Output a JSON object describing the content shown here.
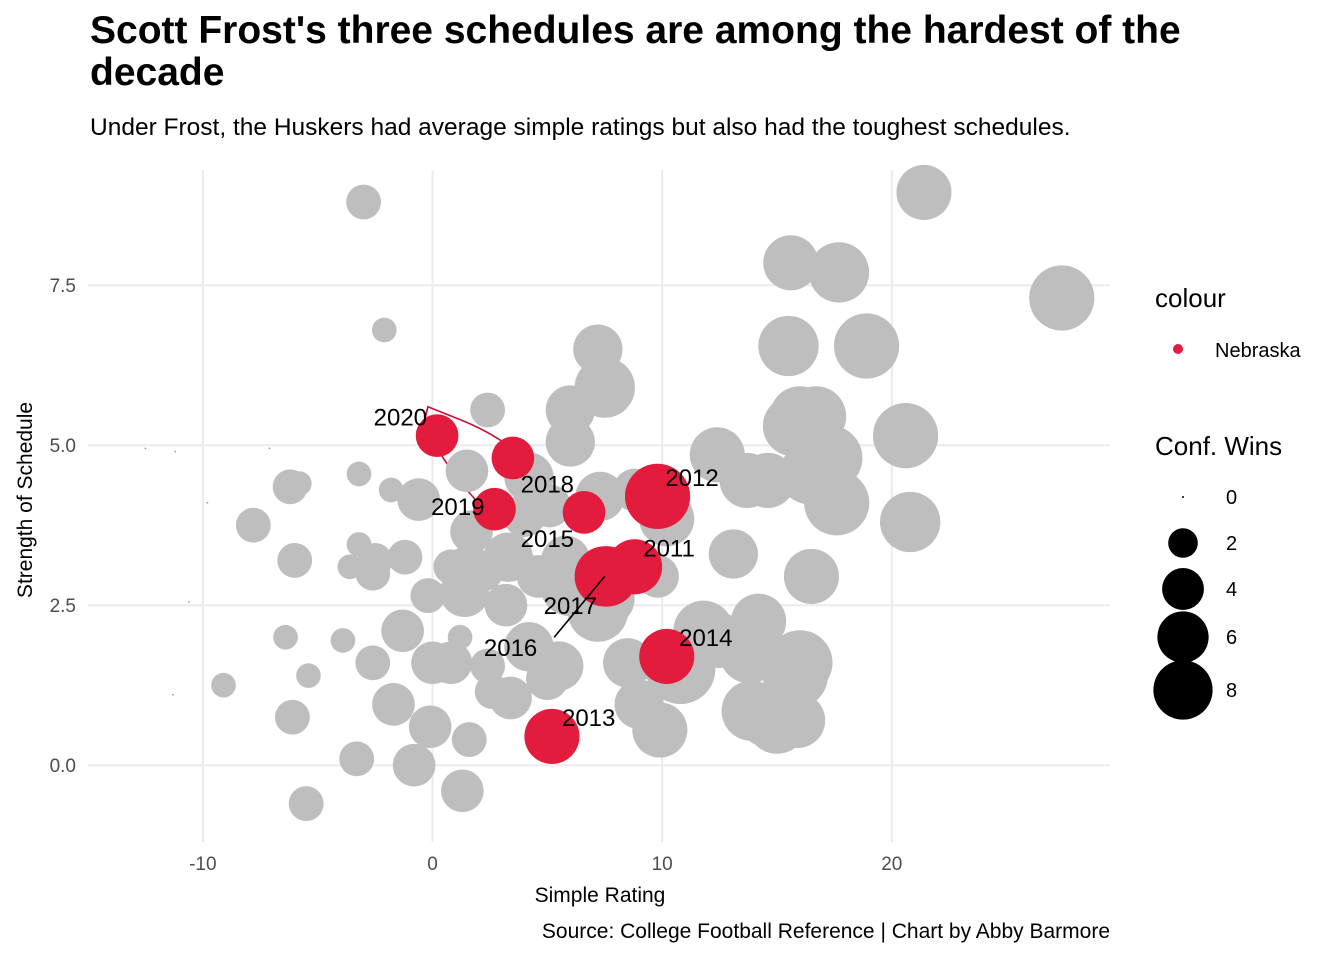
{
  "title": "Scott Frost's three schedules are among the hardest of the decade",
  "subtitle": "Under Frost, the Huskers had average simple ratings but also had the toughest schedules.",
  "caption": "Source: College Football Reference | Chart by Abby Barmore",
  "colors": {
    "highlight": "#e31c3d",
    "other": "#bebebe",
    "grid": "#ebebeb",
    "encircle": "#c8102e"
  },
  "chart_data": {
    "type": "scatter",
    "xlabel": "Simple Rating",
    "ylabel": "Strength of Schedule",
    "xlim": [
      -15,
      29.5
    ],
    "ylim": [
      -1.2,
      9.3
    ],
    "x_ticks": [
      -10,
      0,
      10,
      20
    ],
    "x_tick_labels": [
      "-10",
      "0",
      "10",
      "20"
    ],
    "y_ticks": [
      0,
      2.5,
      5,
      7.5
    ],
    "y_tick_labels": [
      "0.0",
      "2.5",
      "5.0",
      "7.5"
    ],
    "grid": true,
    "legend": {
      "placement": "right",
      "colour_title": "colour",
      "colour_entries": [
        "Nebraska"
      ],
      "size_title": "Conf. Wins",
      "size_entries": [
        0,
        2,
        4,
        6,
        8
      ]
    },
    "series": [
      {
        "name": "Nebraska",
        "points": [
          {
            "label": "2020",
            "x": 0.2,
            "y": 5.15,
            "wins": 3
          },
          {
            "label": "2019",
            "x": 2.7,
            "y": 4.0,
            "wins": 3
          },
          {
            "label": "2018",
            "x": 3.5,
            "y": 4.8,
            "wins": 3
          },
          {
            "label": "2015",
            "x": 6.6,
            "y": 3.95,
            "wins": 3
          },
          {
            "label": "2012",
            "x": 9.8,
            "y": 4.2,
            "wins": 7
          },
          {
            "label": "2011",
            "x": 8.8,
            "y": 3.1,
            "wins": 5
          },
          {
            "label": "2017",
            "x": 7.6,
            "y": 2.95,
            "wins": 6
          },
          {
            "label": "2016",
            "x": 7.5,
            "y": 2.95,
            "wins": 6
          },
          {
            "label": "2014",
            "x": 10.2,
            "y": 1.7,
            "wins": 5
          },
          {
            "label": "2013",
            "x": 5.2,
            "y": 0.45,
            "wins": 5
          }
        ]
      },
      {
        "points": [
          {
            "x": 21.4,
            "y": 8.95,
            "wins": 5
          },
          {
            "x": -3.0,
            "y": 8.8,
            "wins": 2
          },
          {
            "x": 15.6,
            "y": 7.85,
            "wins": 5
          },
          {
            "x": 17.7,
            "y": 7.7,
            "wins": 6
          },
          {
            "x": 27.4,
            "y": 7.3,
            "wins": 7
          },
          {
            "x": -2.1,
            "y": 6.8,
            "wins": 1
          },
          {
            "x": 7.2,
            "y": 6.5,
            "wins": 4
          },
          {
            "x": 15.5,
            "y": 6.55,
            "wins": 6
          },
          {
            "x": 18.9,
            "y": 6.55,
            "wins": 7
          },
          {
            "x": 7.5,
            "y": 5.9,
            "wins": 6
          },
          {
            "x": 6.0,
            "y": 5.55,
            "wins": 4
          },
          {
            "x": 2.4,
            "y": 5.55,
            "wins": 2
          },
          {
            "x": 15.7,
            "y": 5.3,
            "wins": 6
          },
          {
            "x": 16.0,
            "y": 5.45,
            "wins": 6
          },
          {
            "x": 16.7,
            "y": 5.45,
            "wins": 6
          },
          {
            "x": 20.6,
            "y": 5.15,
            "wins": 7
          },
          {
            "x": 6.0,
            "y": 5.05,
            "wins": 4
          },
          {
            "x": 12.4,
            "y": 4.85,
            "wins": 5
          },
          {
            "x": 17.3,
            "y": 4.8,
            "wins": 7
          },
          {
            "x": 16.4,
            "y": 4.55,
            "wins": 6
          },
          {
            "x": 13.7,
            "y": 4.45,
            "wins": 5
          },
          {
            "x": 14.6,
            "y": 4.45,
            "wins": 5
          },
          {
            "x": 4.2,
            "y": 4.5,
            "wins": 4
          },
          {
            "x": 1.5,
            "y": 4.6,
            "wins": 3
          },
          {
            "x": -3.2,
            "y": 4.55,
            "wins": 1
          },
          {
            "x": -6.2,
            "y": 4.35,
            "wins": 2
          },
          {
            "x": -5.8,
            "y": 4.4,
            "wins": 1
          },
          {
            "x": -1.8,
            "y": 4.3,
            "wins": 1
          },
          {
            "x": -0.6,
            "y": 4.15,
            "wins": 3
          },
          {
            "x": 7.3,
            "y": 4.2,
            "wins": 4
          },
          {
            "x": 8.8,
            "y": 4.3,
            "wins": 3
          },
          {
            "x": 17.6,
            "y": 4.1,
            "wins": 7
          },
          {
            "x": 5.1,
            "y": 4.05,
            "wins": 3
          },
          {
            "x": 4.0,
            "y": 3.9,
            "wins": 3
          },
          {
            "x": 10.2,
            "y": 3.85,
            "wins": 5
          },
          {
            "x": 20.8,
            "y": 3.8,
            "wins": 6
          },
          {
            "x": -7.8,
            "y": 3.75,
            "wins": 2
          },
          {
            "x": 1.7,
            "y": 3.65,
            "wins": 3
          },
          {
            "x": -3.2,
            "y": 3.45,
            "wins": 1
          },
          {
            "x": 13.1,
            "y": 3.3,
            "wins": 4
          },
          {
            "x": 5.8,
            "y": 3.2,
            "wins": 4
          },
          {
            "x": 3.3,
            "y": 3.25,
            "wins": 4
          },
          {
            "x": -6.0,
            "y": 3.2,
            "wins": 2
          },
          {
            "x": -2.5,
            "y": 3.2,
            "wins": 2
          },
          {
            "x": -1.2,
            "y": 3.25,
            "wins": 2
          },
          {
            "x": -3.6,
            "y": 3.1,
            "wins": 1
          },
          {
            "x": 1.6,
            "y": 3.05,
            "wins": 4
          },
          {
            "x": 0.8,
            "y": 3.1,
            "wins": 2
          },
          {
            "x": 2.3,
            "y": 3.0,
            "wins": 2
          },
          {
            "x": 6.0,
            "y": 2.8,
            "wins": 6
          },
          {
            "x": 4.6,
            "y": 2.95,
            "wins": 3
          },
          {
            "x": 9.8,
            "y": 2.95,
            "wins": 3
          },
          {
            "x": 16.5,
            "y": 2.95,
            "wins": 5
          },
          {
            "x": -2.6,
            "y": 3.0,
            "wins": 2
          },
          {
            "x": 1.4,
            "y": 2.7,
            "wins": 4
          },
          {
            "x": -0.2,
            "y": 2.65,
            "wins": 2
          },
          {
            "x": 3.2,
            "y": 2.5,
            "wins": 3
          },
          {
            "x": 7.2,
            "y": 2.4,
            "wins": 6
          },
          {
            "x": 7.6,
            "y": 2.6,
            "wins": 5
          },
          {
            "x": 14.2,
            "y": 2.25,
            "wins": 5
          },
          {
            "x": 11.8,
            "y": 2.1,
            "wins": 6
          },
          {
            "x": 12.5,
            "y": 1.95,
            "wins": 5
          },
          {
            "x": -1.3,
            "y": 2.1,
            "wins": 3
          },
          {
            "x": -6.4,
            "y": 2.0,
            "wins": 1
          },
          {
            "x": -3.9,
            "y": 1.95,
            "wins": 1
          },
          {
            "x": 1.2,
            "y": 2.0,
            "wins": 1
          },
          {
            "x": 4.2,
            "y": 1.85,
            "wins": 4
          },
          {
            "x": 13.8,
            "y": 1.75,
            "wins": 6
          },
          {
            "x": 10.8,
            "y": 1.5,
            "wins": 8
          },
          {
            "x": 16.0,
            "y": 1.6,
            "wins": 7
          },
          {
            "x": 15.8,
            "y": 1.4,
            "wins": 7
          },
          {
            "x": 8.5,
            "y": 1.6,
            "wins": 4
          },
          {
            "x": 5.5,
            "y": 1.55,
            "wins": 4
          },
          {
            "x": 5.0,
            "y": 1.35,
            "wins": 3
          },
          {
            "x": 0.0,
            "y": 1.6,
            "wins": 3
          },
          {
            "x": 0.8,
            "y": 1.6,
            "wins": 3
          },
          {
            "x": -2.6,
            "y": 1.6,
            "wins": 2
          },
          {
            "x": 2.4,
            "y": 1.55,
            "wins": 2
          },
          {
            "x": -5.4,
            "y": 1.4,
            "wins": 1
          },
          {
            "x": -9.1,
            "y": 1.25,
            "wins": 1
          },
          {
            "x": 2.6,
            "y": 1.15,
            "wins": 2
          },
          {
            "x": 3.4,
            "y": 1.05,
            "wins": 3
          },
          {
            "x": -1.7,
            "y": 0.95,
            "wins": 3
          },
          {
            "x": 9.0,
            "y": 0.95,
            "wins": 4
          },
          {
            "x": 13.9,
            "y": 0.85,
            "wins": 6
          },
          {
            "x": 14.6,
            "y": 0.75,
            "wins": 6
          },
          {
            "x": 15.0,
            "y": 0.65,
            "wins": 6
          },
          {
            "x": 15.9,
            "y": 0.7,
            "wins": 5
          },
          {
            "x": -6.1,
            "y": 0.75,
            "wins": 2
          },
          {
            "x": -0.1,
            "y": 0.6,
            "wins": 3
          },
          {
            "x": 9.9,
            "y": 0.55,
            "wins": 5
          },
          {
            "x": 1.6,
            "y": 0.4,
            "wins": 2
          },
          {
            "x": -3.3,
            "y": 0.1,
            "wins": 2
          },
          {
            "x": -0.8,
            "y": 0.0,
            "wins": 3
          },
          {
            "x": 1.3,
            "y": -0.4,
            "wins": 3
          },
          {
            "x": -5.5,
            "y": -0.6,
            "wins": 2
          },
          {
            "x": -12.5,
            "y": 4.95,
            "wins": 0
          },
          {
            "x": -11.2,
            "y": 4.9,
            "wins": 0
          },
          {
            "x": -7.1,
            "y": 4.95,
            "wins": 0
          },
          {
            "x": -9.8,
            "y": 4.1,
            "wins": 0
          },
          {
            "x": -10.6,
            "y": 2.55,
            "wins": 0
          },
          {
            "x": -11.3,
            "y": 1.1,
            "wins": 0
          }
        ]
      }
    ],
    "labels": [
      {
        "text": "2020",
        "x": -1.4,
        "y": 5.45
      },
      {
        "text": "2019",
        "x": 1.1,
        "y": 4.05
      },
      {
        "text": "2018",
        "x": 5.0,
        "y": 4.4
      },
      {
        "text": "2015",
        "x": 5.0,
        "y": 3.55
      },
      {
        "text": "2012",
        "x": 11.3,
        "y": 4.5
      },
      {
        "text": "2011",
        "x": 10.3,
        "y": 3.4
      },
      {
        "text": "2017",
        "x": 6.0,
        "y": 2.5
      },
      {
        "text": "2016",
        "x": 3.4,
        "y": 1.85
      },
      {
        "text": "2014",
        "x": 11.9,
        "y": 2.0
      },
      {
        "text": "2013",
        "x": 6.8,
        "y": 0.75
      }
    ]
  }
}
